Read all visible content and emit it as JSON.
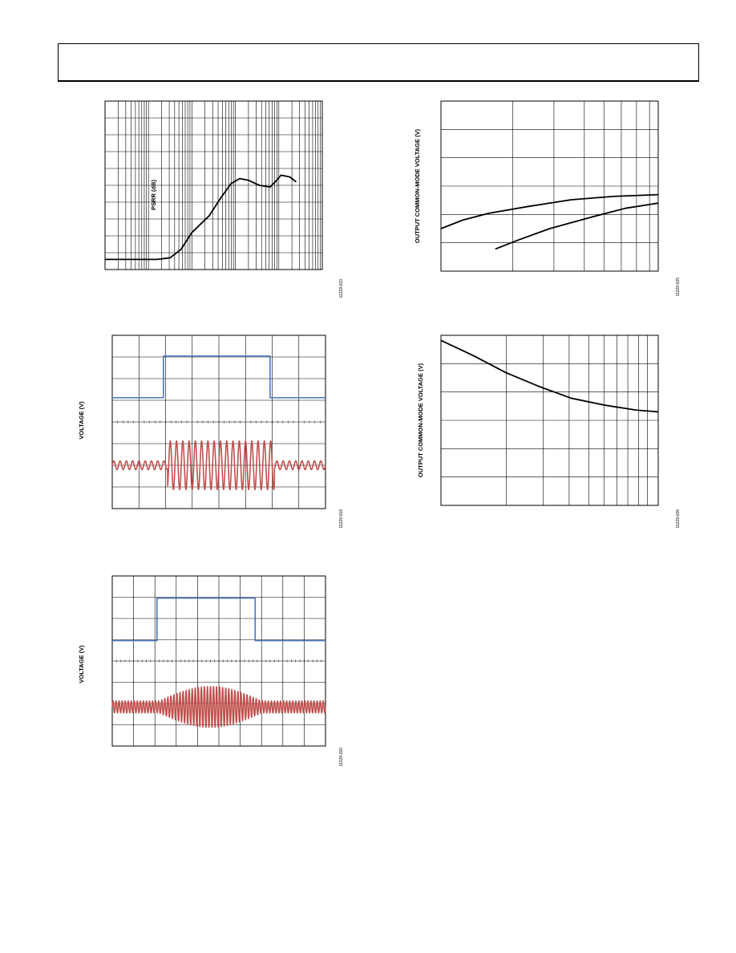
{
  "header": {
    "text": ""
  },
  "chart_data": [
    {
      "id": "psrr",
      "type": "line",
      "ylabel": "PSRR (dB)",
      "figure_id": "11229-023",
      "x_scale": "log",
      "x_decades": 5,
      "grid": true,
      "series": [
        {
          "color": "#000000",
          "points": [
            [
              0,
              0.06
            ],
            [
              1.2,
              0.06
            ],
            [
              1.5,
              0.07
            ],
            [
              1.75,
              0.12
            ],
            [
              2.0,
              0.22
            ],
            [
              2.4,
              0.32
            ],
            [
              2.65,
              0.42
            ],
            [
              2.9,
              0.51
            ],
            [
              3.1,
              0.54
            ],
            [
              3.3,
              0.53
            ],
            [
              3.55,
              0.5
            ],
            [
              3.8,
              0.49
            ],
            [
              3.95,
              0.53
            ],
            [
              4.05,
              0.56
            ],
            [
              4.25,
              0.55
            ],
            [
              4.4,
              0.52
            ]
          ]
        }
      ]
    },
    {
      "id": "cm-top",
      "type": "line",
      "ylabel": "OUTPUT COMMON-MODE VOLTAGE (V)",
      "figure_id": "11229-025",
      "x_scale": "log",
      "grid": true,
      "series": [
        {
          "color": "#000000",
          "points": [
            [
              0,
              0.25
            ],
            [
              0.1,
              0.3
            ],
            [
              0.22,
              0.34
            ],
            [
              0.4,
              0.38
            ],
            [
              0.6,
              0.42
            ],
            [
              0.8,
              0.44
            ],
            [
              1.0,
              0.45
            ]
          ]
        },
        {
          "color": "#000000",
          "points": [
            [
              0.25,
              0.13
            ],
            [
              0.35,
              0.18
            ],
            [
              0.5,
              0.25
            ],
            [
              0.7,
              0.32
            ],
            [
              0.85,
              0.37
            ],
            [
              1.0,
              0.4
            ]
          ]
        }
      ]
    },
    {
      "id": "voltage-1",
      "type": "line",
      "ylabel": "VOLTAGE (V)",
      "figure_id": "11229-019",
      "grid": true,
      "series": [
        {
          "color": "#4a76b8",
          "kind": "pulse",
          "low": 0.64,
          "high": 0.88,
          "t_on": 0.24,
          "t_off": 0.74
        },
        {
          "color": "#c0504d",
          "kind": "burst",
          "center": 0.25,
          "amp_small": 0.025,
          "amp_large": 0.14,
          "t_on": 0.26,
          "t_off": 0.76,
          "cycles": 34
        }
      ]
    },
    {
      "id": "cm-bottom",
      "type": "line",
      "ylabel": "OUTPUT COMMON-MODE VOLTAGE (V)",
      "figure_id": "11229-026",
      "x_scale": "log",
      "grid": true,
      "series": [
        {
          "color": "#000000",
          "points": [
            [
              0,
              0.97
            ],
            [
              0.15,
              0.88
            ],
            [
              0.3,
              0.78
            ],
            [
              0.45,
              0.7
            ],
            [
              0.6,
              0.63
            ],
            [
              0.75,
              0.59
            ],
            [
              0.9,
              0.56
            ],
            [
              1.0,
              0.55
            ]
          ]
        }
      ]
    },
    {
      "id": "voltage-2",
      "type": "line",
      "ylabel": "VOLTAGE (V)",
      "figure_id": "11229-020",
      "grid": true,
      "series": [
        {
          "color": "#4a76b8",
          "kind": "pulse",
          "low": 0.62,
          "high": 0.87,
          "t_on": 0.21,
          "t_off": 0.67
        },
        {
          "color": "#c0504d",
          "kind": "envelope-burst",
          "center": 0.23,
          "amp_small": 0.035,
          "amp_large": 0.12,
          "t_on": 0.22,
          "t_off": 0.7,
          "cycles": 70
        }
      ]
    }
  ]
}
